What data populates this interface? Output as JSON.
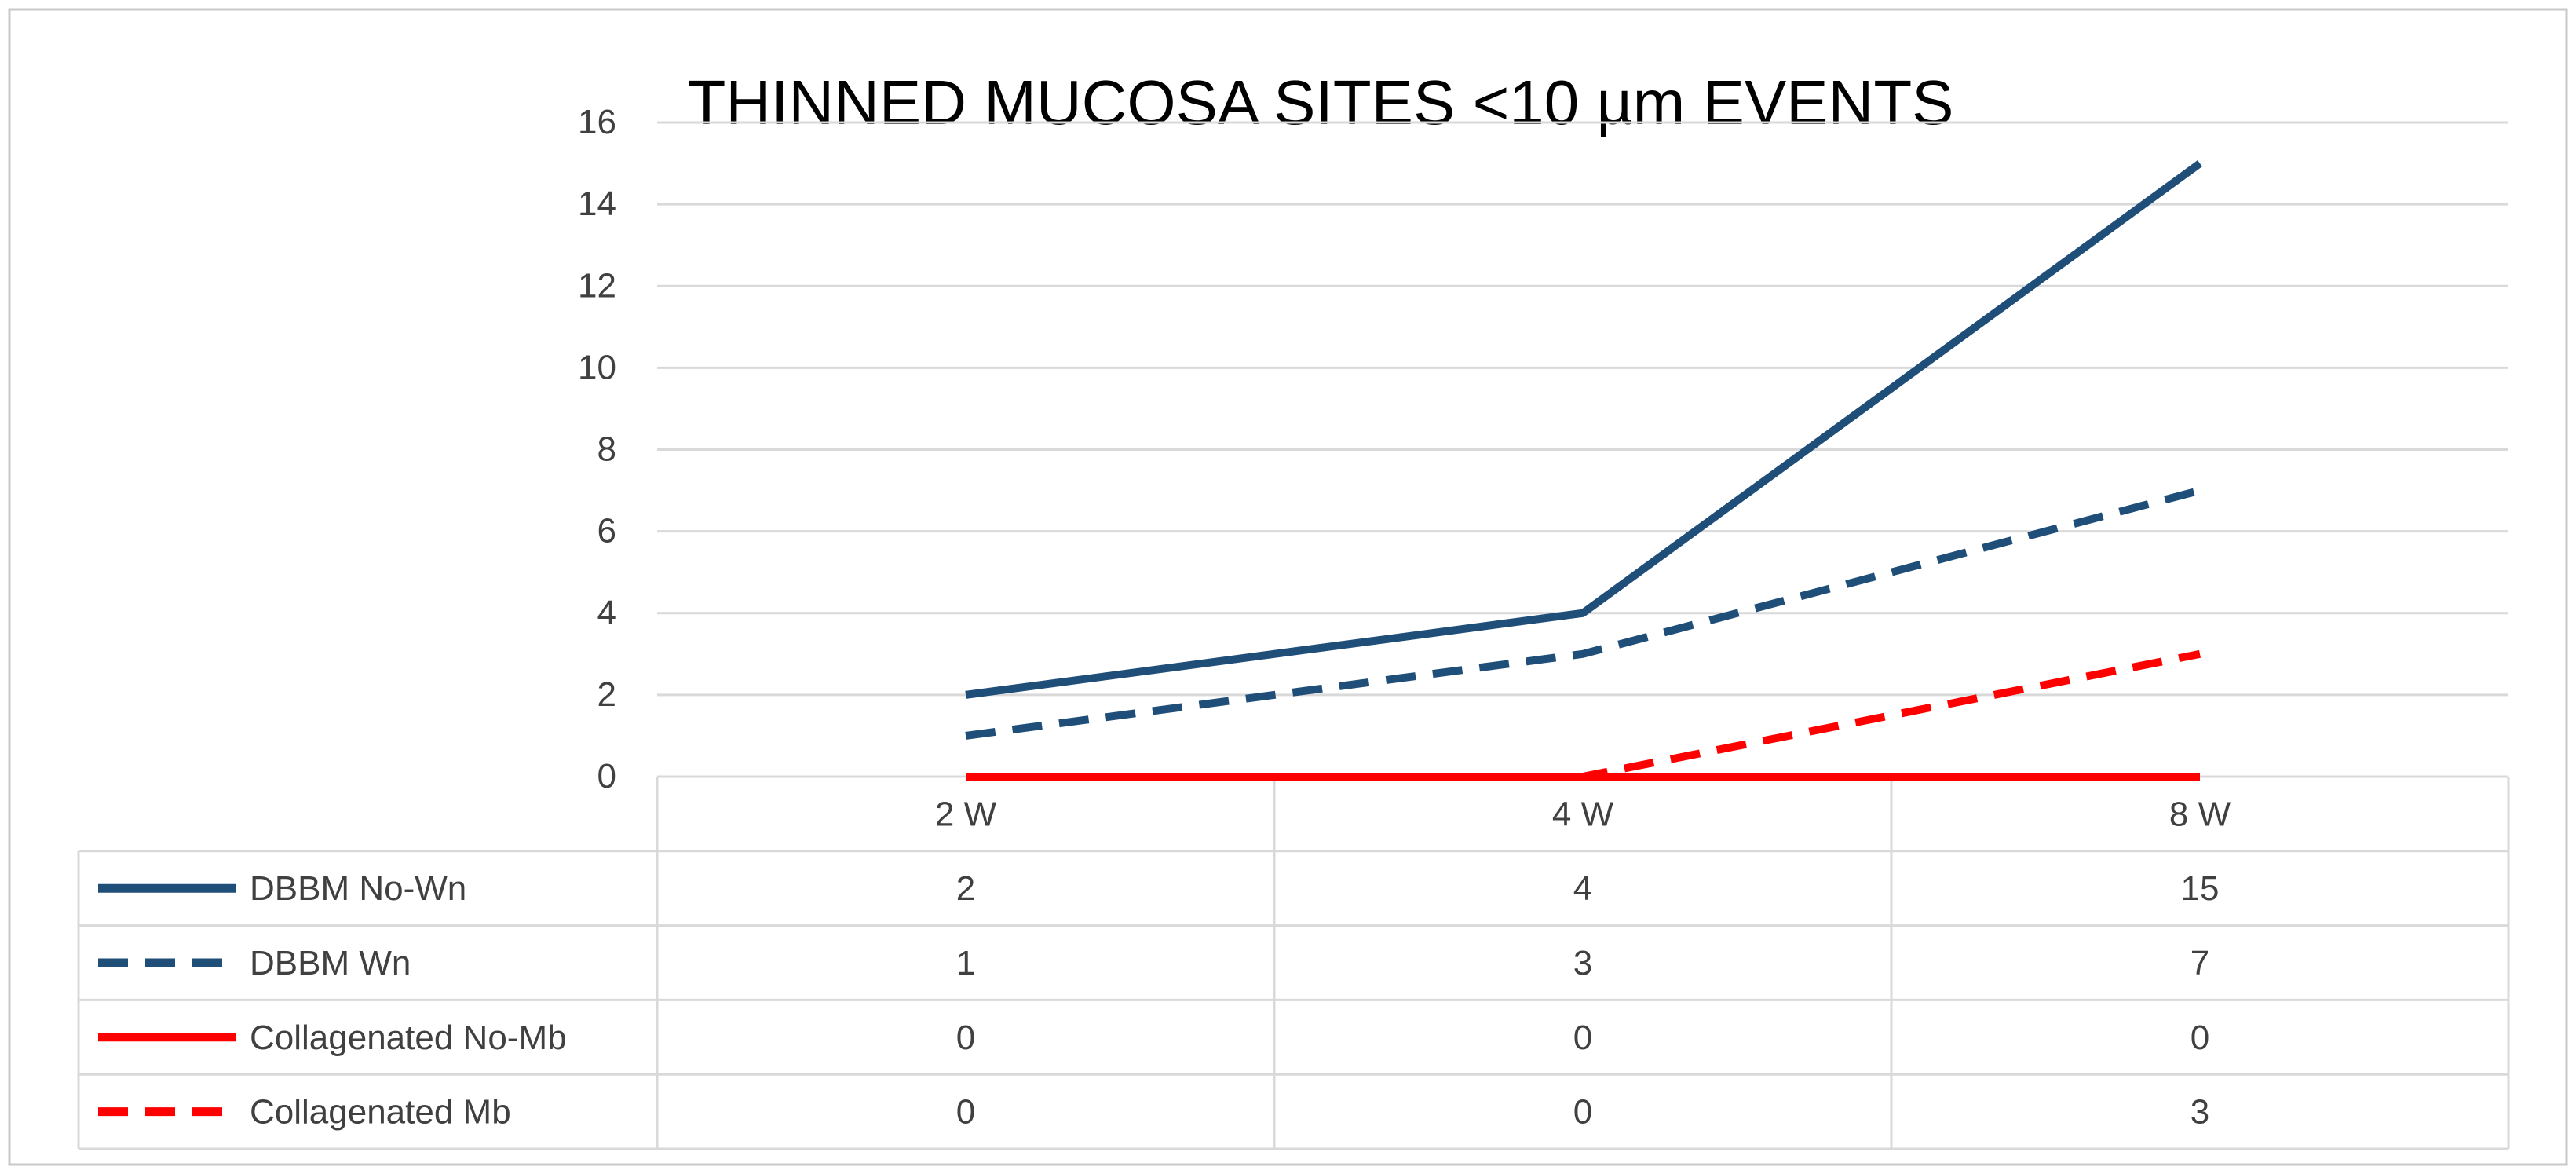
{
  "chart_data": {
    "type": "line",
    "title": "THINNED MUCOSA SITES <10 µm EVENTS",
    "xlabel": "",
    "ylabel": "",
    "categories": [
      "2 W",
      "4 W",
      "8 W"
    ],
    "ylim": [
      0,
      16
    ],
    "yticks": [
      0,
      2,
      4,
      6,
      8,
      10,
      12,
      14,
      16
    ],
    "grid": true,
    "legend": "data-table-left",
    "series": [
      {
        "name": "DBBM No-Wn",
        "values": [
          2,
          4,
          15
        ],
        "color": "#1F4E79",
        "dash": "solid",
        "table_values": [
          "2",
          "4",
          "15"
        ]
      },
      {
        "name": "DBBM Wn",
        "values": [
          1,
          3,
          7
        ],
        "color": "#1F4E79",
        "dash": "dashed",
        "table_values": [
          "1",
          "3",
          "7"
        ]
      },
      {
        "name": "Collagenated No-Mb",
        "values": [
          0,
          0,
          0
        ],
        "color": "#FF0000",
        "dash": "solid",
        "table_values": [
          "0",
          "0",
          "0"
        ]
      },
      {
        "name": "Collagenated Mb",
        "values": [
          0,
          0,
          3
        ],
        "color": "#FF0000",
        "dash": "dashed",
        "table_values": [
          "0",
          "0",
          "3"
        ]
      }
    ]
  }
}
